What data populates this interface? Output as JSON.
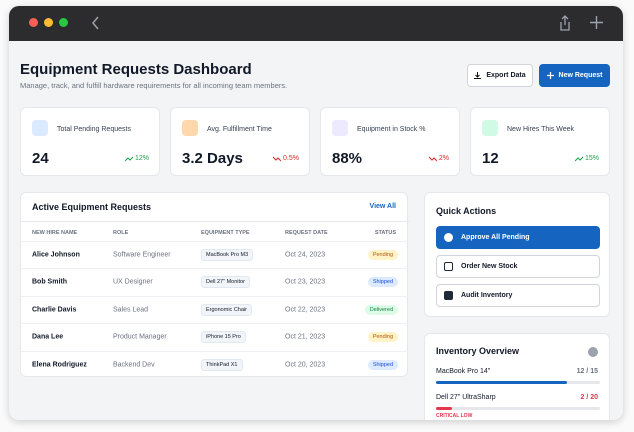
{
  "header": {
    "title": "Equipment Requests Dashboard",
    "subtitle": "Manage, track, and fulfill hardware requirements for all incoming team members.",
    "actions": [
      "Export Data",
      "New Request"
    ]
  },
  "stats": [
    {
      "label": "Total Pending Requests",
      "value": "24",
      "trend": "12%",
      "direction": "up"
    },
    {
      "label": "Avg. Fulfillment Time",
      "value": "3.2 Days",
      "trend": "0.5%",
      "direction": "down"
    },
    {
      "label": "Equipment in Stock %",
      "value": "88%",
      "trend": "2%",
      "direction": "down"
    },
    {
      "label": "New Hires This Week",
      "value": "12",
      "trend": "15%",
      "direction": "up"
    }
  ],
  "table": {
    "title": "Active Equipment Requests",
    "link": "View All",
    "columns": [
      "NEW HIRE NAME",
      "ROLE",
      "EQUIPMENT TYPE",
      "REQUEST DATE",
      "STATUS"
    ],
    "rows": [
      [
        "Alice Johnson",
        "Software Engineer",
        "MacBook Pro M3",
        "Oct 24, 2023",
        "Pending"
      ],
      [
        "Bob Smith",
        "UX Designer",
        "Dell 27\" Monitor",
        "Oct 23, 2023",
        "Shipped"
      ],
      [
        "Charlie Davis",
        "Sales Lead",
        "Ergonomic Chair",
        "Oct 22, 2023",
        "Delivered"
      ],
      [
        "Dana Lee",
        "Product Manager",
        "iPhone 15 Pro",
        "Oct 21, 2023",
        "Pending"
      ],
      [
        "Elena Rodriguez",
        "Backend Dev",
        "ThinkPad X1",
        "Oct 20, 2023",
        "Shipped"
      ]
    ],
    "badges": [
      "warning",
      "info",
      "success",
      "warning",
      "info"
    ]
  },
  "quick_actions": {
    "title": "Quick Actions",
    "buttons": [
      "Approve All Pending",
      "Order New Stock",
      "Audit Inventory"
    ]
  },
  "inventory": {
    "title": "Inventory Overview",
    "items": [
      {
        "name": "MacBook Pro 14\"",
        "stock": "12 / 15",
        "fill": 80,
        "color": "#1565c0"
      },
      {
        "name": "Dell 27\" UltraSharp",
        "stock": "2 / 20",
        "fill": 10,
        "color": "#e5384f",
        "alert": "CRITICAL LOW"
      }
    ]
  }
}
